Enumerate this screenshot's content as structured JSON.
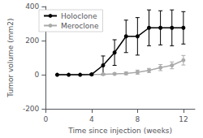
{
  "chart_data": {
    "type": "line",
    "xlabel": "Time since injection (weeks)",
    "ylabel": "Tumor volume (mm2)",
    "x": [
      1,
      2,
      3,
      4,
      5,
      6,
      7,
      8,
      9,
      10,
      11,
      12
    ],
    "series": [
      {
        "name": "Holoclone",
        "color": "#000000",
        "marker": "circle",
        "values": [
          0,
          0,
          0,
          2,
          55,
          130,
          225,
          225,
          275,
          275,
          275,
          275
        ],
        "yerr": [
          2,
          2,
          2,
          5,
          55,
          75,
          95,
          110,
          105,
          100,
          105,
          95
        ]
      },
      {
        "name": "Meroclone",
        "color": "#aaaaaa",
        "marker": "circle",
        "values": [
          0,
          0,
          0,
          2,
          3,
          5,
          8,
          15,
          25,
          42,
          55,
          85
        ],
        "yerr": [
          1,
          1,
          1,
          2,
          3,
          4,
          8,
          12,
          12,
          18,
          20,
          28
        ]
      }
    ],
    "xlim": [
      0,
      13
    ],
    "ylim": [
      -200,
      400
    ],
    "xticks": [
      0,
      4,
      8,
      12
    ],
    "yticks": [
      -200,
      0,
      200,
      400
    ],
    "grid": false,
    "legend": "upper left"
  }
}
